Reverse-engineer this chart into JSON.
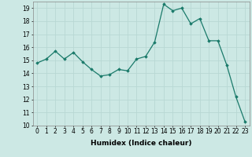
{
  "x": [
    0,
    1,
    2,
    3,
    4,
    5,
    6,
    7,
    8,
    9,
    10,
    11,
    12,
    13,
    14,
    15,
    16,
    17,
    18,
    19,
    20,
    21,
    22,
    23
  ],
  "y": [
    14.8,
    15.1,
    15.7,
    15.1,
    15.6,
    14.9,
    14.3,
    13.8,
    13.9,
    14.3,
    14.2,
    15.1,
    15.3,
    16.4,
    19.3,
    18.8,
    19.0,
    17.8,
    18.2,
    16.5,
    16.5,
    14.6,
    12.2,
    10.3
  ],
  "xlabel": "Humidex (Indice chaleur)",
  "ylabel": "",
  "ylim": [
    10,
    19.5
  ],
  "xlim": [
    -0.5,
    23.5
  ],
  "yticks": [
    10,
    11,
    12,
    13,
    14,
    15,
    16,
    17,
    18,
    19
  ],
  "xticks": [
    0,
    1,
    2,
    3,
    4,
    5,
    6,
    7,
    8,
    9,
    10,
    11,
    12,
    13,
    14,
    15,
    16,
    17,
    18,
    19,
    20,
    21,
    22,
    23
  ],
  "line_color": "#1a7a6a",
  "marker": "D",
  "marker_size": 1.8,
  "bg_color": "#cce8e4",
  "grid_color": "#b8d8d4",
  "label_fontsize": 6.5,
  "tick_fontsize": 5.5
}
